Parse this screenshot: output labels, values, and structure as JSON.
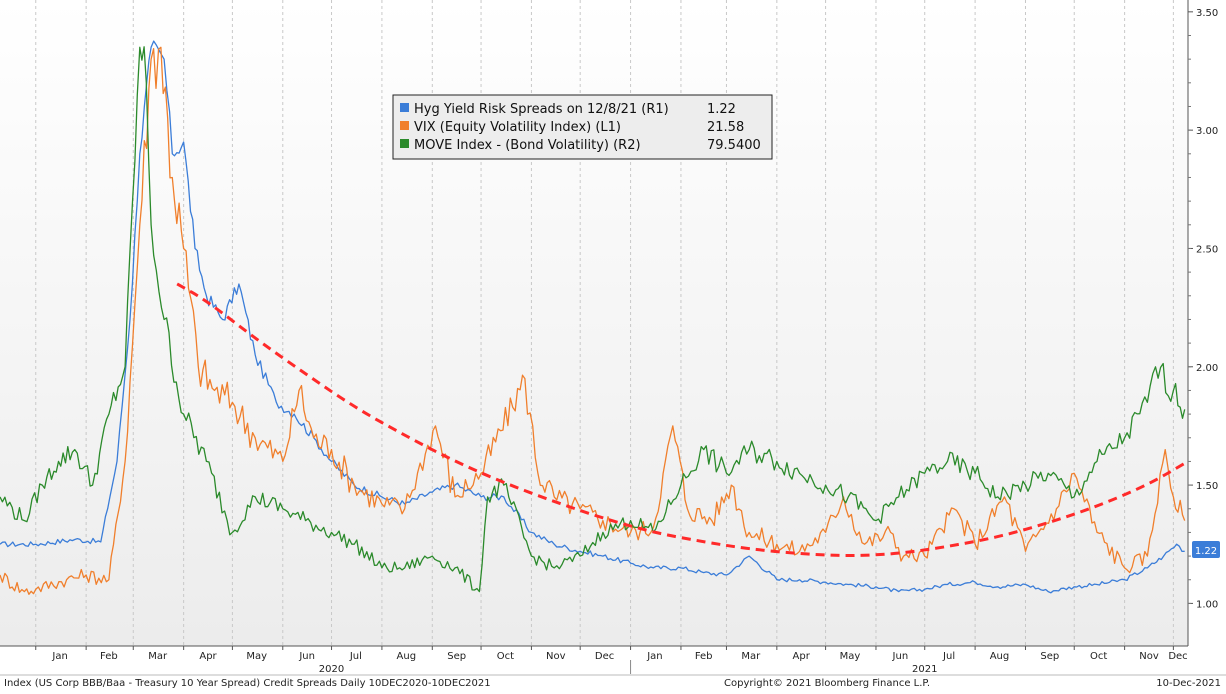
{
  "chart_data": {
    "type": "line",
    "x_range": [
      "2019-12-10",
      "2021-12-10"
    ],
    "y_right": {
      "label": "",
      "ylim": [
        0.82,
        3.55
      ],
      "ticks": [
        "1.00",
        "1.50",
        "2.00",
        "2.50",
        "3.00",
        "3.50"
      ]
    },
    "x_ticks": {
      "months": [
        "Jan",
        "Feb",
        "Mar",
        "Apr",
        "May",
        "Jun",
        "Jul",
        "Aug",
        "Sep",
        "Oct",
        "Nov",
        "Dec",
        "Jan",
        "Feb",
        "Mar",
        "Apr",
        "May",
        "Jun",
        "Jul",
        "Aug",
        "Sep",
        "Oct",
        "Nov",
        "Dec"
      ],
      "years": [
        "2020",
        "2021"
      ]
    },
    "legend": {
      "placement": "top-center",
      "entries": [
        {
          "label": "Hyg Yield Risk Spreads on 12/8/21 (R1)",
          "value": "1.22",
          "color": "#3b7dd8"
        },
        {
          "label": "VIX (Equity Volatility Index) (L1)",
          "value": "21.58",
          "color": "#f07f2c"
        },
        {
          "label": "MOVE Index - (Bond Volatility) (R2)",
          "value": "79.5400",
          "color": "#2b8a2b"
        }
      ]
    },
    "last_value_badge": "1.22",
    "series": [
      {
        "name": "Hyg Yield Risk Spreads on 12/8/21 (R1)",
        "color": "#3b7dd8",
        "x": [
          "2019-12-10",
          "2020-01-01",
          "2020-01-25",
          "2020-02-10",
          "2020-02-20",
          "2020-02-28",
          "2020-03-05",
          "2020-03-12",
          "2020-03-20",
          "2020-03-25",
          "2020-04-01",
          "2020-04-08",
          "2020-04-15",
          "2020-04-25",
          "2020-05-05",
          "2020-05-15",
          "2020-05-28",
          "2020-06-08",
          "2020-06-20",
          "2020-07-01",
          "2020-07-15",
          "2020-08-01",
          "2020-08-15",
          "2020-09-01",
          "2020-09-15",
          "2020-10-01",
          "2020-10-15",
          "2020-11-01",
          "2020-11-15",
          "2020-12-01",
          "2020-12-15",
          "2021-01-01",
          "2021-01-15",
          "2021-02-01",
          "2021-02-15",
          "2021-03-01",
          "2021-03-15",
          "2021-04-01",
          "2021-04-15",
          "2021-05-01",
          "2021-05-15",
          "2021-06-01",
          "2021-06-15",
          "2021-07-01",
          "2021-07-15",
          "2021-08-01",
          "2021-08-15",
          "2021-09-01",
          "2021-09-15",
          "2021-10-01",
          "2021-10-15",
          "2021-11-01",
          "2021-11-15",
          "2021-11-25",
          "2021-12-03",
          "2021-12-08"
        ],
        "values": [
          1.25,
          1.25,
          1.27,
          1.26,
          1.6,
          2.2,
          2.9,
          3.35,
          3.3,
          2.9,
          2.95,
          2.5,
          2.3,
          2.2,
          2.35,
          2.05,
          1.85,
          1.8,
          1.7,
          1.6,
          1.5,
          1.45,
          1.42,
          1.47,
          1.5,
          1.45,
          1.45,
          1.3,
          1.25,
          1.22,
          1.2,
          1.17,
          1.15,
          1.15,
          1.13,
          1.12,
          1.2,
          1.1,
          1.1,
          1.09,
          1.08,
          1.07,
          1.05,
          1.06,
          1.08,
          1.09,
          1.07,
          1.08,
          1.05,
          1.07,
          1.08,
          1.1,
          1.15,
          1.2,
          1.25,
          1.22
        ]
      },
      {
        "name": "VIX (Equity Volatility Index) (L1)",
        "color": "#f07f2c",
        "x": [
          "2019-12-10",
          "2019-12-25",
          "2020-01-01",
          "2020-01-20",
          "2020-02-01",
          "2020-02-15",
          "2020-02-25",
          "2020-03-05",
          "2020-03-12",
          "2020-03-18",
          "2020-03-25",
          "2020-04-01",
          "2020-04-10",
          "2020-04-20",
          "2020-05-01",
          "2020-05-15",
          "2020-06-01",
          "2020-06-11",
          "2020-06-20",
          "2020-07-01",
          "2020-07-15",
          "2020-08-01",
          "2020-08-15",
          "2020-09-03",
          "2020-09-15",
          "2020-10-01",
          "2020-10-28",
          "2020-11-05",
          "2020-11-15",
          "2020-12-01",
          "2020-12-15",
          "2021-01-01",
          "2021-01-15",
          "2021-01-27",
          "2021-02-05",
          "2021-02-20",
          "2021-03-04",
          "2021-03-15",
          "2021-04-01",
          "2021-04-15",
          "2021-05-01",
          "2021-05-12",
          "2021-05-25",
          "2021-06-10",
          "2021-06-18",
          "2021-07-01",
          "2021-07-19",
          "2021-08-01",
          "2021-08-19",
          "2021-09-01",
          "2021-09-20",
          "2021-10-01",
          "2021-10-15",
          "2021-11-01",
          "2021-11-15",
          "2021-11-26",
          "2021-12-01",
          "2021-12-08"
        ],
        "values": [
          1.12,
          1.05,
          1.06,
          1.1,
          1.12,
          1.1,
          1.6,
          2.6,
          3.3,
          3.35,
          2.8,
          2.5,
          2.0,
          1.9,
          1.85,
          1.7,
          1.6,
          1.9,
          1.7,
          1.65,
          1.5,
          1.42,
          1.4,
          1.75,
          1.45,
          1.55,
          1.95,
          1.55,
          1.45,
          1.4,
          1.35,
          1.3,
          1.32,
          1.75,
          1.4,
          1.35,
          1.5,
          1.3,
          1.25,
          1.22,
          1.3,
          1.45,
          1.25,
          1.3,
          1.2,
          1.2,
          1.4,
          1.25,
          1.45,
          1.22,
          1.4,
          1.55,
          1.3,
          1.15,
          1.2,
          1.65,
          1.45,
          1.35
        ]
      },
      {
        "name": "MOVE Index - (Bond Volatility) (R2)",
        "color": "#2b8a2b",
        "x": [
          "2019-12-10",
          "2019-12-25",
          "2020-01-05",
          "2020-01-15",
          "2020-01-25",
          "2020-02-05",
          "2020-02-15",
          "2020-02-25",
          "2020-03-05",
          "2020-03-09",
          "2020-03-12",
          "2020-03-20",
          "2020-04-01",
          "2020-04-15",
          "2020-05-01",
          "2020-05-15",
          "2020-06-01",
          "2020-06-15",
          "2020-07-01",
          "2020-07-15",
          "2020-08-01",
          "2020-08-15",
          "2020-09-01",
          "2020-09-15",
          "2020-09-30",
          "2020-10-05",
          "2020-10-15",
          "2020-11-01",
          "2020-11-15",
          "2020-12-01",
          "2020-12-15",
          "2021-01-01",
          "2021-01-15",
          "2021-02-01",
          "2021-02-15",
          "2021-03-01",
          "2021-03-15",
          "2021-04-01",
          "2021-04-15",
          "2021-05-01",
          "2021-05-15",
          "2021-06-01",
          "2021-06-15",
          "2021-07-01",
          "2021-07-15",
          "2021-08-01",
          "2021-08-15",
          "2021-09-01",
          "2021-09-15",
          "2021-10-01",
          "2021-10-15",
          "2021-11-01",
          "2021-11-15",
          "2021-11-20",
          "2021-12-01",
          "2021-12-08"
        ],
        "values": [
          1.45,
          1.35,
          1.5,
          1.6,
          1.65,
          1.5,
          1.8,
          2.0,
          3.35,
          3.2,
          2.6,
          2.2,
          1.8,
          1.6,
          1.3,
          1.45,
          1.4,
          1.35,
          1.3,
          1.25,
          1.15,
          1.15,
          1.2,
          1.15,
          1.05,
          1.45,
          1.5,
          1.2,
          1.15,
          1.2,
          1.3,
          1.35,
          1.3,
          1.5,
          1.65,
          1.55,
          1.65,
          1.6,
          1.55,
          1.5,
          1.45,
          1.35,
          1.45,
          1.55,
          1.6,
          1.55,
          1.45,
          1.5,
          1.55,
          1.45,
          1.6,
          1.7,
          1.85,
          2.0,
          1.9,
          1.82
        ]
      }
    ],
    "trend": {
      "name": "",
      "color": "#ff2a2a",
      "style": "dashed",
      "x": [
        "2020-03-28",
        "2020-04-15",
        "2020-05-15",
        "2020-06-15",
        "2020-07-15",
        "2020-08-15",
        "2020-09-15",
        "2020-10-15",
        "2020-11-15",
        "2020-12-15",
        "2021-01-15",
        "2021-02-15",
        "2021-03-15",
        "2021-04-15",
        "2021-05-15",
        "2021-06-15",
        "2021-07-15",
        "2021-08-15",
        "2021-09-15",
        "2021-10-15",
        "2021-11-15",
        "2021-12-10"
      ],
      "values": [
        2.35,
        2.28,
        2.12,
        1.97,
        1.83,
        1.71,
        1.6,
        1.51,
        1.43,
        1.36,
        1.3,
        1.26,
        1.23,
        1.21,
        1.2,
        1.21,
        1.24,
        1.28,
        1.34,
        1.41,
        1.5,
        1.6
      ]
    },
    "grid": "vertical-dashed",
    "footer": {
      "left": "Index (US Corp BBB/Baa - Treasury 10 Year Spread) Credit Spreads  Daily 10DEC2020-10DEC2021",
      "center": "Copyright© 2021 Bloomberg Finance L.P.",
      "right": "10-Dec-2021"
    }
  }
}
